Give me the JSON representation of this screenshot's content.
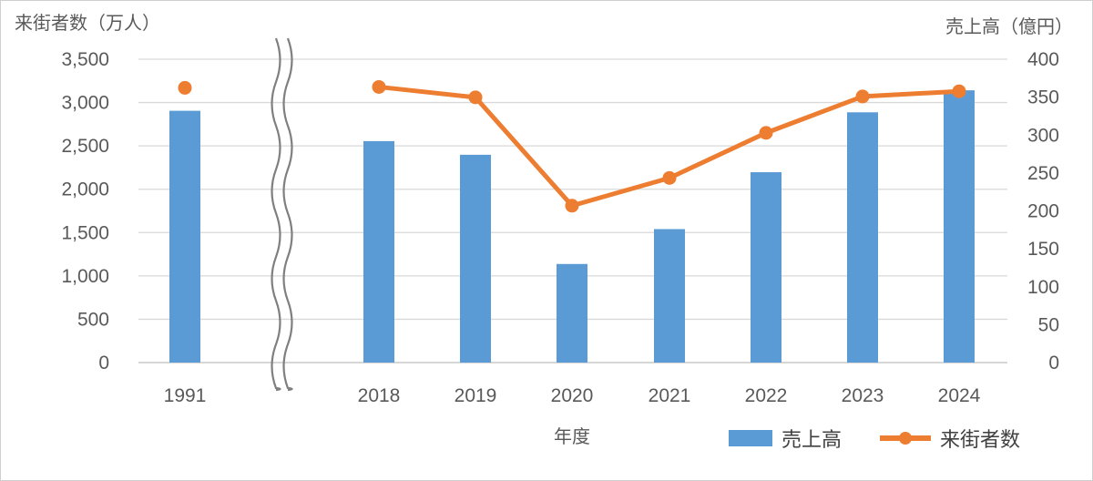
{
  "chart_data": {
    "type": "bar",
    "categories": [
      "1991",
      "2018",
      "2019",
      "2020",
      "2021",
      "2022",
      "2023",
      "2024"
    ],
    "xlabel": "年度",
    "axis_break_after": "1991",
    "ylabel_left": "来街者数（万人）",
    "ylabel_right": "売上高（億円）",
    "ylim_left": [
      0,
      3500
    ],
    "ylim_right": [
      0,
      400
    ],
    "yticks_left": [
      "0",
      "500",
      "1,000",
      "1,500",
      "2,000",
      "2,500",
      "3,000",
      "3,500"
    ],
    "yticks_right": [
      "0",
      "50",
      "100",
      "150",
      "200",
      "250",
      "300",
      "350",
      "400"
    ],
    "grid": true,
    "legend_position": "bottom-right",
    "series": [
      {
        "name": "売上高",
        "type": "bar",
        "axis": "right",
        "color": "#5B9BD5",
        "values": [
          332,
          292,
          274,
          130,
          176,
          251,
          330,
          359
        ]
      },
      {
        "name": "来街者数",
        "type": "line",
        "axis": "left",
        "color": "#ED7D31",
        "values": [
          3170,
          3180,
          3060,
          1810,
          2130,
          2650,
          3070,
          3130
        ],
        "connected_from_index": 1
      }
    ]
  }
}
